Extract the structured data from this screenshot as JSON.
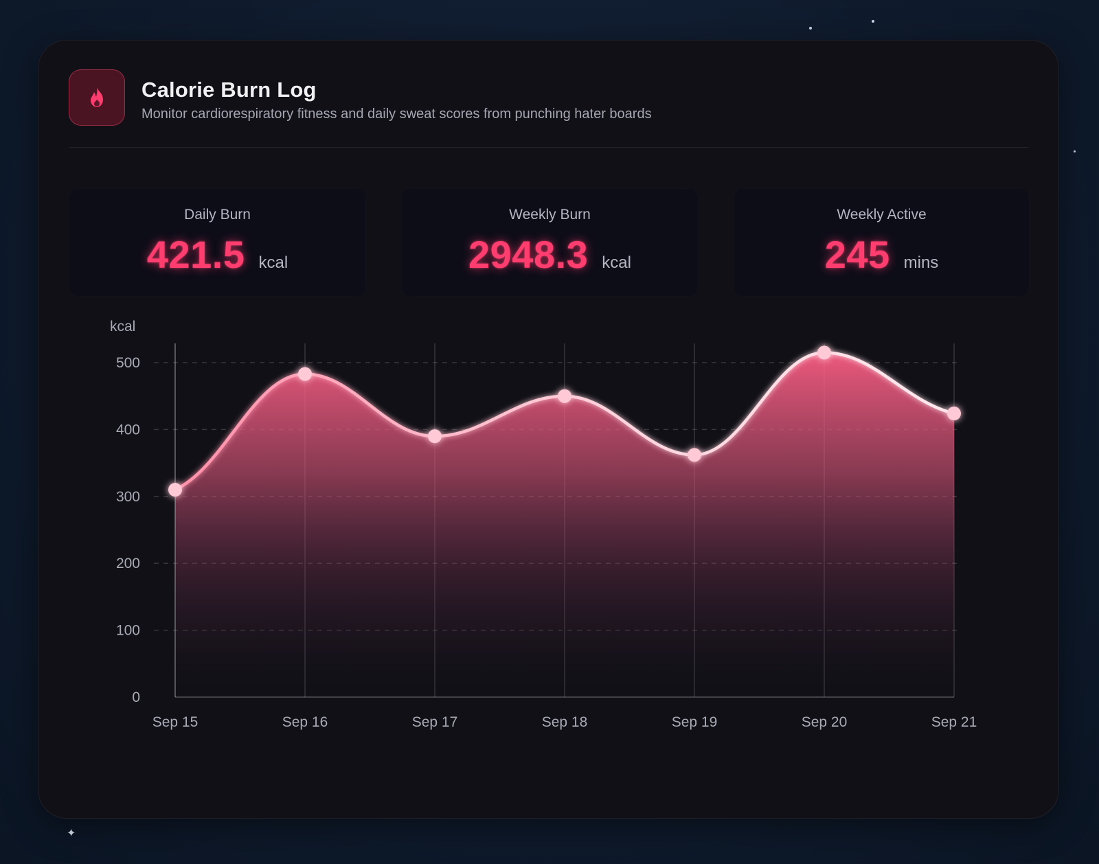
{
  "header": {
    "title": "Calorie Burn Log",
    "subtitle": "Monitor cardiorespiratory fitness and daily sweat scores from punching hater boards",
    "icon": "flame-icon"
  },
  "stats": [
    {
      "label": "Daily Burn",
      "value": "421.5",
      "unit": "kcal"
    },
    {
      "label": "Weekly Burn",
      "value": "2948.3",
      "unit": "kcal"
    },
    {
      "label": "Weekly Active",
      "value": "245",
      "unit": "mins"
    }
  ],
  "colors": {
    "accent": "#ff3d6e",
    "line": "#ffc4d2",
    "card": "#101016",
    "background": "#0f1b2d"
  },
  "chart_data": {
    "type": "area",
    "title": "",
    "xlabel": "",
    "ylabel": "kcal",
    "categories": [
      "Sep 15",
      "Sep 16",
      "Sep 17",
      "Sep 18",
      "Sep 19",
      "Sep 20",
      "Sep 21"
    ],
    "values": [
      310,
      483,
      390,
      450,
      362,
      515,
      424
    ],
    "ylim": [
      0,
      500
    ],
    "yticks": [
      0,
      100,
      200,
      300,
      400,
      500
    ],
    "grid": "dashed horizontal, solid vertical",
    "smooth": true,
    "legend": "none"
  }
}
